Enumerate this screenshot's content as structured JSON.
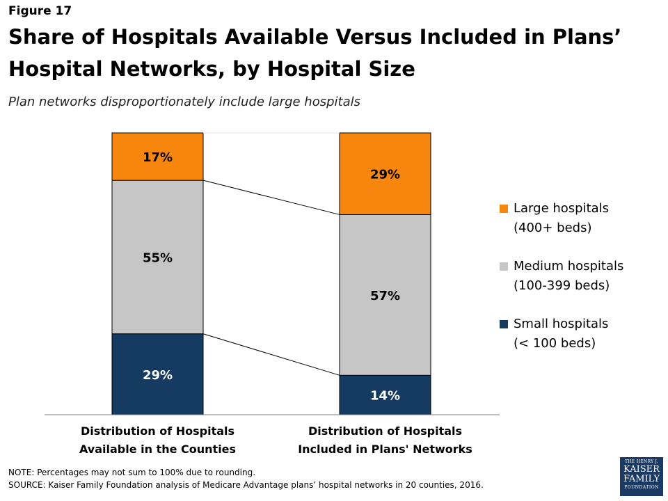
{
  "figure_label": "Figure 17",
  "colors": {
    "large": "#f7860f",
    "medium": "#c6c6c6",
    "small": "#163b62"
  },
  "chart_data": {
    "type": "bar",
    "stacked": true,
    "title": "Share of Hospitals Available Versus Included in Plans’ Hospital Networks, by Hospital Size",
    "subtitle": "Plan networks disproportionately include large hospitals",
    "categories": [
      [
        "Distribution of Hospitals",
        "Available in the Counties"
      ],
      [
        "Distribution of Hospitals",
        "Included in Plans' Networks"
      ]
    ],
    "series": [
      {
        "key": "small",
        "name": "Small hospitals (< 100 beds)",
        "values": [
          29,
          14
        ],
        "labels": [
          "29%",
          "14%"
        ]
      },
      {
        "key": "medium",
        "name": "Medium hospitals (100-399 beds)",
        "values": [
          55,
          57
        ],
        "labels": [
          "55%",
          "57%"
        ]
      },
      {
        "key": "large",
        "name": "Large hospitals (400+ beds)",
        "values": [
          17,
          29
        ],
        "labels": [
          "17%",
          "29%"
        ]
      }
    ],
    "ylim": [
      0,
      100
    ],
    "legend_position": "right",
    "connector_lines": true
  },
  "legend": [
    {
      "key": "large",
      "line1": "Large hospitals",
      "line2": "(400+ beds)"
    },
    {
      "key": "medium",
      "line1": "Medium hospitals",
      "line2": "(100-399 beds)"
    },
    {
      "key": "small",
      "line1": "Small hospitals",
      "line2": "(< 100 beds)"
    }
  ],
  "notes": {
    "note": "NOTE: Percentages may not sum to 100% due to rounding.",
    "source": "SOURCE: Kaiser Family Foundation analysis of Medicare Advantage plans’ hospital networks in 20 counties, 2016."
  },
  "logo": {
    "line1": "THE HENRY J.",
    "line2": "KAISER",
    "line3": "FAMILY",
    "line4": "FOUNDATION"
  }
}
